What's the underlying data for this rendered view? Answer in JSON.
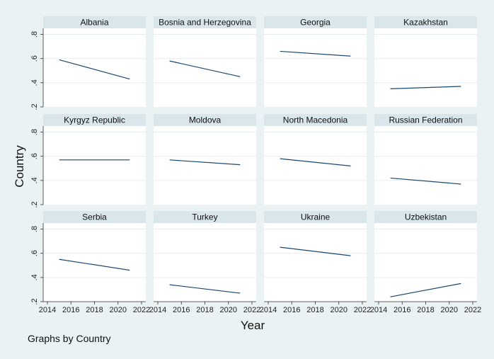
{
  "colors": {
    "background": "#eaf2f3",
    "panel_bg": "#ffffff",
    "strip_bg": "#d9e6eb",
    "line": "#1a476f",
    "grid": "#e8eef0"
  },
  "chart_data": {
    "type": "line",
    "ylabel": "Country",
    "xlabel": "Year",
    "note": "Graphs by Country",
    "ylim": [
      0.2,
      0.85
    ],
    "xlim": [
      2014,
      2022
    ],
    "y_ticks": [
      0.2,
      0.4,
      0.6,
      0.8
    ],
    "y_tick_labels": [
      ".2",
      ".4",
      ".6",
      ".8"
    ],
    "x_ticks": [
      2014,
      2016,
      2018,
      2020,
      2022
    ],
    "x_tick_labels": [
      "2014",
      "2016",
      "2018",
      "2020",
      "2022"
    ],
    "grid": true,
    "panels": [
      {
        "name": "Albania",
        "x": [
          2015,
          2021
        ],
        "y": [
          0.59,
          0.43
        ]
      },
      {
        "name": "Bosnia and Herzegovina",
        "x": [
          2015,
          2021
        ],
        "y": [
          0.58,
          0.45
        ]
      },
      {
        "name": "Georgia",
        "x": [
          2015,
          2021
        ],
        "y": [
          0.66,
          0.62
        ]
      },
      {
        "name": "Kazakhstan",
        "x": [
          2015,
          2021
        ],
        "y": [
          0.35,
          0.37
        ]
      },
      {
        "name": "Kyrgyz Republic",
        "x": [
          2015,
          2021
        ],
        "y": [
          0.57,
          0.57
        ]
      },
      {
        "name": "Moldova",
        "x": [
          2015,
          2021
        ],
        "y": [
          0.57,
          0.53
        ]
      },
      {
        "name": "North Macedonia",
        "x": [
          2015,
          2021
        ],
        "y": [
          0.58,
          0.52
        ]
      },
      {
        "name": "Russian Federation",
        "x": [
          2015,
          2021
        ],
        "y": [
          0.42,
          0.37
        ]
      },
      {
        "name": "Serbia",
        "x": [
          2015,
          2021
        ],
        "y": [
          0.55,
          0.46
        ]
      },
      {
        "name": "Turkey",
        "x": [
          2015,
          2021
        ],
        "y": [
          0.34,
          0.27
        ]
      },
      {
        "name": "Ukraine",
        "x": [
          2015,
          2021
        ],
        "y": [
          0.65,
          0.58
        ]
      },
      {
        "name": "Uzbekistan",
        "x": [
          2015,
          2021
        ],
        "y": [
          0.24,
          0.35
        ]
      }
    ]
  }
}
